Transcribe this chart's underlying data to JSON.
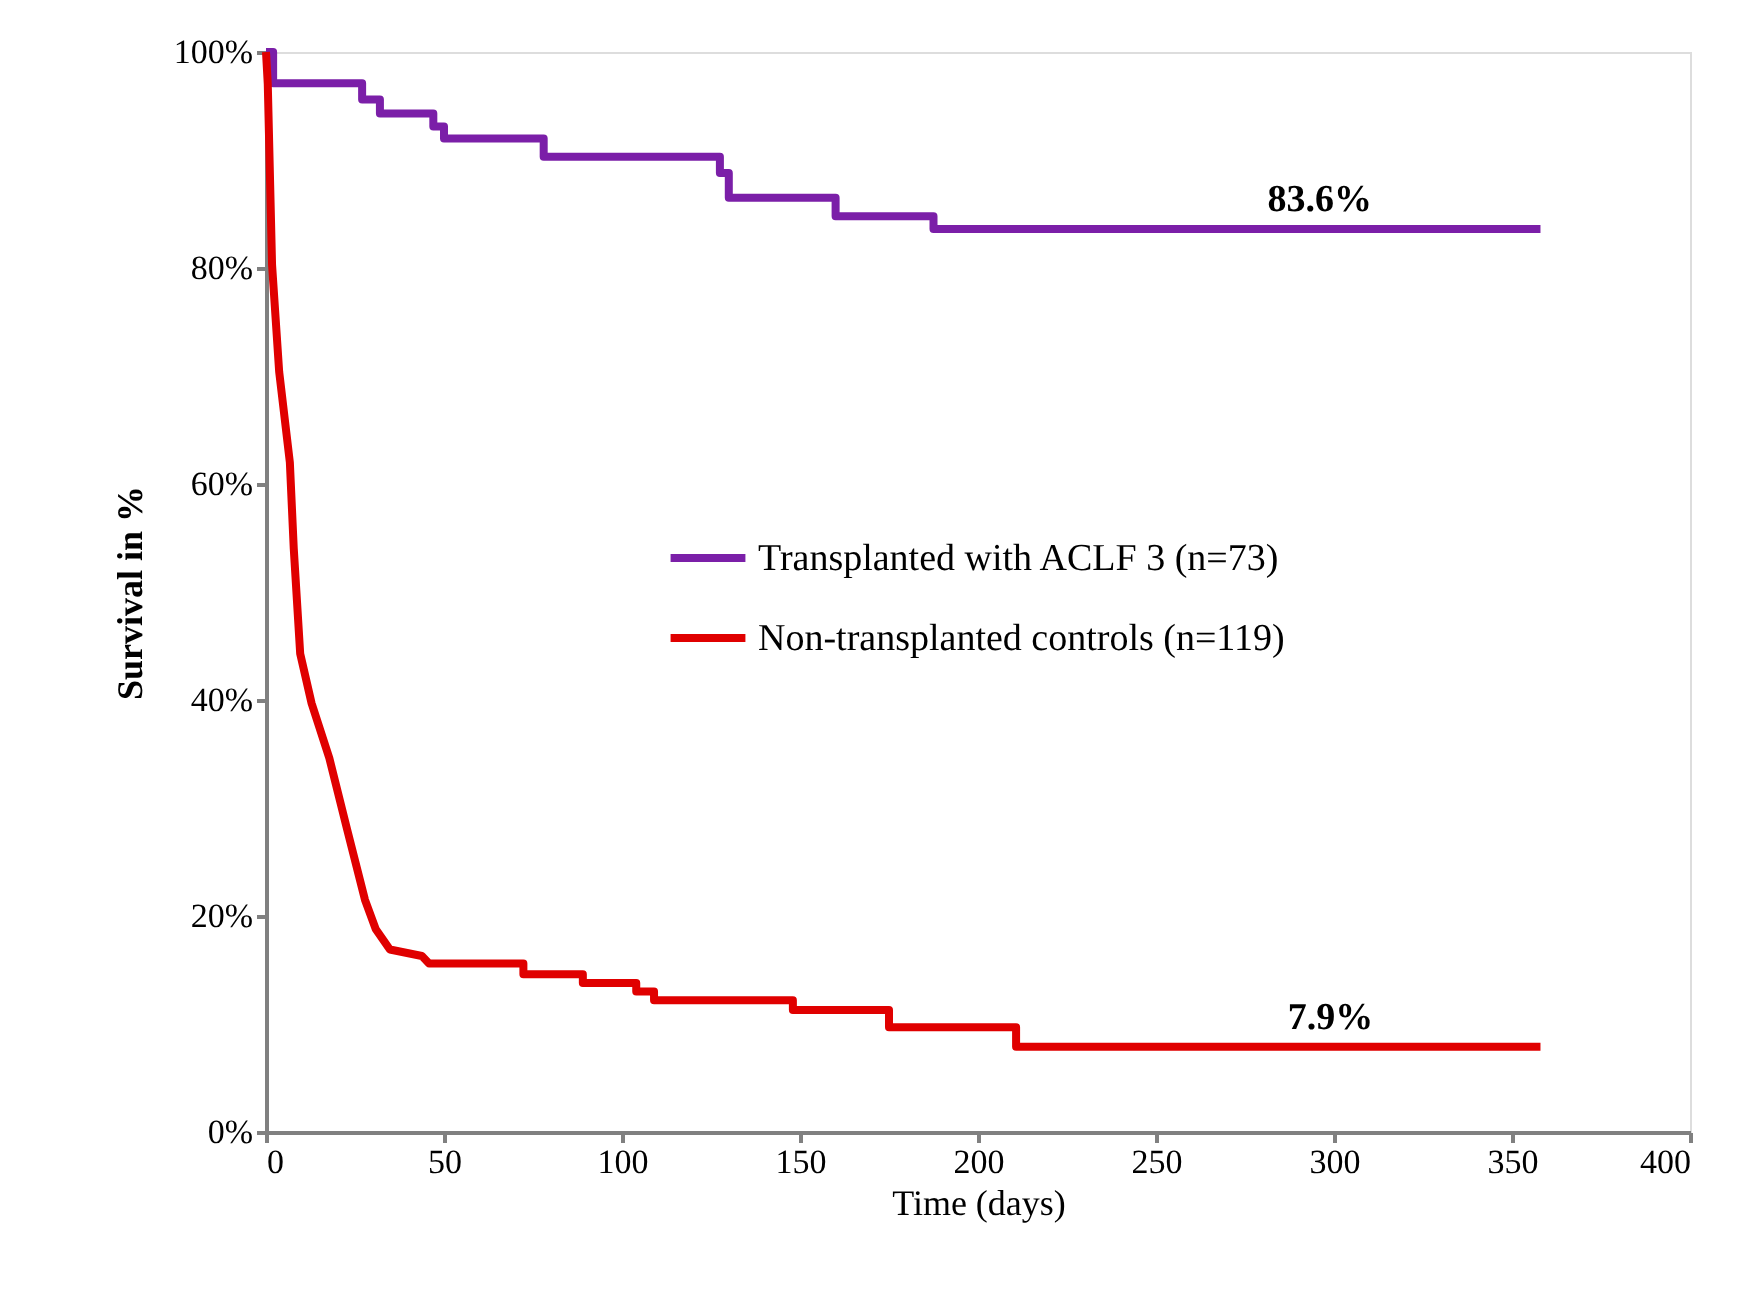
{
  "chart_data": {
    "type": "step",
    "xlabel": "Time (days)",
    "ylabel": "Survival in %",
    "xlim": [
      0,
      400
    ],
    "xticks": [
      0,
      50,
      100,
      150,
      200,
      250,
      300,
      350,
      400
    ],
    "ylim": [
      0,
      100
    ],
    "yticks": [
      {
        "value": 0,
        "label": "0%"
      },
      {
        "value": 20,
        "label": "20%"
      },
      {
        "value": 40,
        "label": "40%"
      },
      {
        "value": 60,
        "label": "60%"
      },
      {
        "value": 80,
        "label": "80%"
      },
      {
        "value": 100,
        "label": "100%"
      }
    ],
    "grid": false,
    "legend": "right",
    "marker": "none",
    "line_style": "solid",
    "series": [
      {
        "name": "Transplanted with ACLF 3 (n=73)",
        "color": "#7b1fa8",
        "x": [
          0,
          2,
          27,
          32,
          47,
          50,
          78,
          127.5,
          130,
          160,
          187.5,
          358
        ],
        "values": [
          100,
          97.1,
          95.6,
          94.3,
          93.1,
          92.0,
          90.3,
          88.8,
          86.5,
          84.8,
          83.6,
          83.6
        ]
      },
      {
        "name": "Non-transplanted controls (n=119)",
        "color": "#e00000",
        "type": "line",
        "x": [
          0,
          0.5,
          1.7,
          3.7,
          6.7,
          7.8,
          9.6,
          12.8,
          17.8,
          22.8,
          27.8,
          30.8,
          34.8,
          43.8,
          45.8,
          72.3,
          72.3,
          89,
          89,
          104,
          104,
          109,
          109,
          148,
          148,
          175,
          175,
          210.7,
          210.7,
          358
        ],
        "values": [
          100,
          97,
          80.3,
          70.4,
          62,
          54,
          44.3,
          39.7,
          34.6,
          28,
          21.5,
          18.8,
          16.9,
          16.3,
          15.6,
          15.6,
          14.6,
          14.6,
          13.8,
          13.8,
          13.0,
          13.0,
          12.2,
          12.2,
          11.3,
          11.3,
          9.7,
          9.7,
          7.9,
          7.9
        ]
      }
    ],
    "annotations": [
      {
        "text": "83.6%",
        "x": 296,
        "y": 83.6
      },
      {
        "text": "7.9%",
        "x": 299,
        "y": 7.9
      }
    ]
  }
}
